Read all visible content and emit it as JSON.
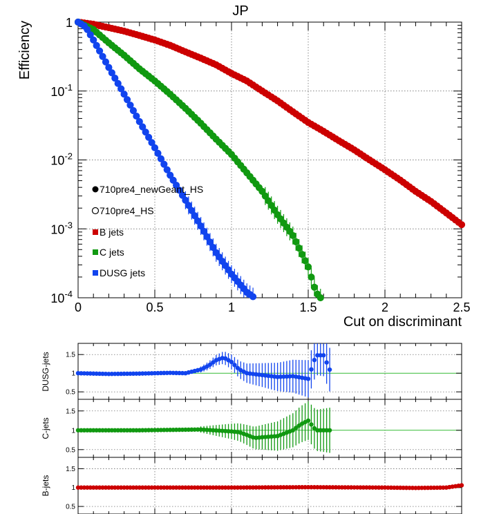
{
  "chart_data": [
    {
      "type": "scatter",
      "title": "JP",
      "xlabel": "Cut on discriminant",
      "ylabel": "Efficiency",
      "xlim": [
        0,
        2.5
      ],
      "ylim": [
        0.0001,
        1
      ],
      "yscale": "log",
      "grid": true,
      "legend_position": "lower-left",
      "x_ticks": [
        "0",
        "0.5",
        "1",
        "1.5",
        "2",
        "2.5"
      ],
      "y_ticks": [
        {
          "base": "1",
          "exp": ""
        },
        {
          "base": "10",
          "exp": "-1"
        },
        {
          "base": "10",
          "exp": "-2"
        },
        {
          "base": "10",
          "exp": "-3"
        },
        {
          "base": "10",
          "exp": "-4"
        }
      ],
      "legend": [
        {
          "label": "710pre4_newGeant_HS",
          "marker": "filled-circle",
          "color": "#000000"
        },
        {
          "label": "710pre4_HS",
          "marker": "open-circle",
          "color": "#000000"
        },
        {
          "label": "B jets",
          "marker": "square",
          "color": "#cc0000"
        },
        {
          "label": "C jets",
          "marker": "square",
          "color": "#119911"
        },
        {
          "label": "DUSG jets",
          "marker": "square",
          "color": "#1144ee"
        }
      ],
      "series": [
        {
          "name": "B jets",
          "color": "#cc0000",
          "x_end": 2.5,
          "points": [
            [
              0,
              1
            ],
            [
              0.1,
              0.93
            ],
            [
              0.2,
              0.83
            ],
            [
              0.3,
              0.74
            ],
            [
              0.4,
              0.64
            ],
            [
              0.5,
              0.55
            ],
            [
              0.6,
              0.46
            ],
            [
              0.7,
              0.37
            ],
            [
              0.8,
              0.3
            ],
            [
              0.9,
              0.24
            ],
            [
              1.0,
              0.18
            ],
            [
              1.1,
              0.14
            ],
            [
              1.2,
              0.1
            ],
            [
              1.3,
              0.072
            ],
            [
              1.4,
              0.05
            ],
            [
              1.5,
              0.035
            ],
            [
              1.6,
              0.026
            ],
            [
              1.7,
              0.019
            ],
            [
              1.8,
              0.014
            ],
            [
              1.9,
              0.01
            ],
            [
              2.0,
              0.0072
            ],
            [
              2.1,
              0.0051
            ],
            [
              2.2,
              0.0035
            ],
            [
              2.3,
              0.0025
            ],
            [
              2.4,
              0.0017
            ],
            [
              2.5,
              0.00115
            ]
          ]
        },
        {
          "name": "C jets",
          "color": "#119911",
          "x_end": 1.58,
          "points": [
            [
              0,
              1
            ],
            [
              0.1,
              0.78
            ],
            [
              0.2,
              0.5
            ],
            [
              0.3,
              0.33
            ],
            [
              0.4,
              0.21
            ],
            [
              0.5,
              0.14
            ],
            [
              0.6,
              0.09
            ],
            [
              0.7,
              0.056
            ],
            [
              0.8,
              0.034
            ],
            [
              0.9,
              0.02
            ],
            [
              1.0,
              0.012
            ],
            [
              1.1,
              0.0065
            ],
            [
              1.2,
              0.0035
            ],
            [
              1.3,
              0.0016
            ],
            [
              1.4,
              0.0008
            ],
            [
              1.5,
              0.00028
            ],
            [
              1.55,
              0.00012
            ],
            [
              1.58,
              0.0001
            ]
          ]
        },
        {
          "name": "DUSG jets",
          "color": "#1144ee",
          "x_end": 1.15,
          "points": [
            [
              0,
              1
            ],
            [
              0.05,
              0.85
            ],
            [
              0.1,
              0.55
            ],
            [
              0.2,
              0.22
            ],
            [
              0.3,
              0.09
            ],
            [
              0.4,
              0.036
            ],
            [
              0.5,
              0.015
            ],
            [
              0.6,
              0.006
            ],
            [
              0.7,
              0.0026
            ],
            [
              0.8,
              0.0011
            ],
            [
              0.9,
              0.00045
            ],
            [
              1.0,
              0.00022
            ],
            [
              1.1,
              0.00012
            ],
            [
              1.15,
              0.0001
            ]
          ]
        }
      ]
    },
    {
      "type": "scatter",
      "title": "",
      "ylabel": "DUSG-jets",
      "xlim": [
        0,
        2.5
      ],
      "ylim": [
        0.3,
        1.8
      ],
      "y_ticks": [
        "0.5",
        "1",
        "1.5"
      ],
      "reference_line": 1,
      "series": [
        {
          "name": "DUSG-jets",
          "color": "#1144ee",
          "x_end": 1.65,
          "points": [
            [
              0,
              1
            ],
            [
              0.2,
              0.98
            ],
            [
              0.4,
              0.99
            ],
            [
              0.6,
              1.01
            ],
            [
              0.7,
              1.0
            ],
            [
              0.8,
              1.1
            ],
            [
              0.85,
              1.2
            ],
            [
              0.9,
              1.35
            ],
            [
              0.95,
              1.42
            ],
            [
              1.0,
              1.3
            ],
            [
              1.05,
              1.1
            ],
            [
              1.1,
              1.0
            ],
            [
              1.2,
              0.95
            ],
            [
              1.3,
              0.9
            ],
            [
              1.4,
              0.92
            ],
            [
              1.5,
              0.85
            ],
            [
              1.55,
              1.48
            ],
            [
              1.6,
              1.48
            ],
            [
              1.65,
              1.0
            ]
          ]
        }
      ]
    },
    {
      "type": "scatter",
      "title": "",
      "ylabel": "C-jets",
      "xlim": [
        0,
        2.5
      ],
      "ylim": [
        0.3,
        1.8
      ],
      "y_ticks": [
        "0.5",
        "1",
        "1.5"
      ],
      "reference_line": 1,
      "series": [
        {
          "name": "C-jets",
          "color": "#119911",
          "x_end": 1.65,
          "points": [
            [
              0,
              1
            ],
            [
              0.2,
              1.0
            ],
            [
              0.4,
              1.0
            ],
            [
              0.6,
              1.01
            ],
            [
              0.8,
              1.02
            ],
            [
              1.0,
              0.97
            ],
            [
              1.05,
              0.95
            ],
            [
              1.1,
              0.88
            ],
            [
              1.15,
              0.8
            ],
            [
              1.2,
              0.82
            ],
            [
              1.3,
              0.85
            ],
            [
              1.4,
              1.0
            ],
            [
              1.45,
              1.15
            ],
            [
              1.5,
              1.25
            ],
            [
              1.55,
              1.0
            ],
            [
              1.6,
              1.0
            ],
            [
              1.65,
              1.0
            ]
          ]
        }
      ]
    },
    {
      "type": "scatter",
      "title": "",
      "ylabel": "B-jets",
      "xlim": [
        0,
        2.5
      ],
      "ylim": [
        0.3,
        1.8
      ],
      "y_ticks": [
        "0.5",
        "1",
        "1.5"
      ],
      "reference_line": 1,
      "series": [
        {
          "name": "B-jets",
          "color": "#cc0000",
          "x_end": 2.5,
          "points": [
            [
              0,
              1
            ],
            [
              0.5,
              1.0
            ],
            [
              1.0,
              1.0
            ],
            [
              1.5,
              1.01
            ],
            [
              2.0,
              1.0
            ],
            [
              2.2,
              0.99
            ],
            [
              2.4,
              1.0
            ],
            [
              2.5,
              1.06
            ]
          ]
        }
      ]
    }
  ]
}
